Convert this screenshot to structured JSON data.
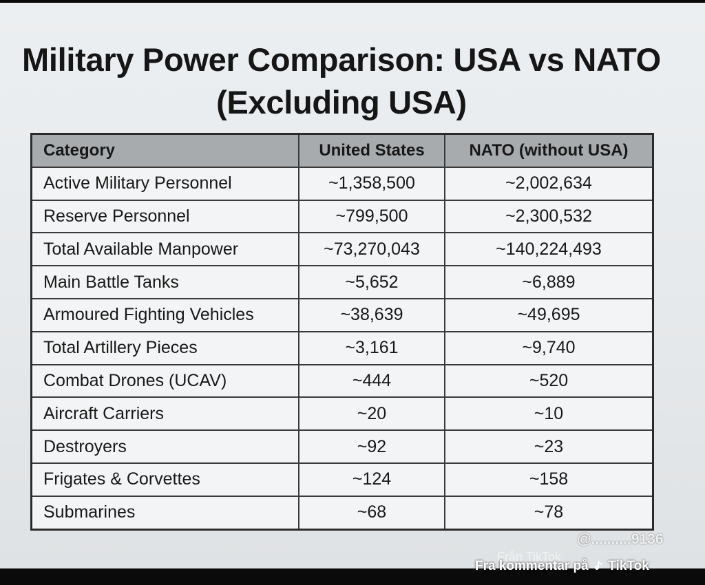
{
  "title": {
    "line1": "Military Power Comparison: USA vs NATO",
    "line2": "(Excluding USA)"
  },
  "table": {
    "headers": [
      "Category",
      "United States",
      "NATO (without USA)"
    ],
    "rows": [
      [
        "Active Military Personnel",
        "~1,358,500",
        "~2,002,634"
      ],
      [
        "Reserve Personnel",
        "~799,500",
        "~2,300,532"
      ],
      [
        "Total Available Manpower",
        "~73,270,043",
        "~140,224,493"
      ],
      [
        "Main Battle Tanks",
        "~5,652",
        "~6,889"
      ],
      [
        "Armoured Fighting Vehicles",
        "~38,639",
        "~49,695"
      ],
      [
        "Total Artillery Pieces",
        "~3,161",
        "~9,740"
      ],
      [
        "Combat Drones (UCAV)",
        "~444",
        "~520"
      ],
      [
        "Aircraft Carriers",
        "~20",
        "~10"
      ],
      [
        "Destroyers",
        "~92",
        "~23"
      ],
      [
        "Frigates & Corvettes",
        "~124",
        "~158"
      ],
      [
        "Submarines",
        "~68",
        "~78"
      ]
    ]
  },
  "watermark": {
    "handle": "@..........9136",
    "ghost": "Från TikTok",
    "source_prefix": "Fra kommentar på",
    "source_app": "TikTok",
    "icon": "tiktok-note-icon"
  },
  "colors": {
    "header_bg": "#a8abae",
    "page_bg": "#e8ebed",
    "border": "#2a2a2a"
  }
}
